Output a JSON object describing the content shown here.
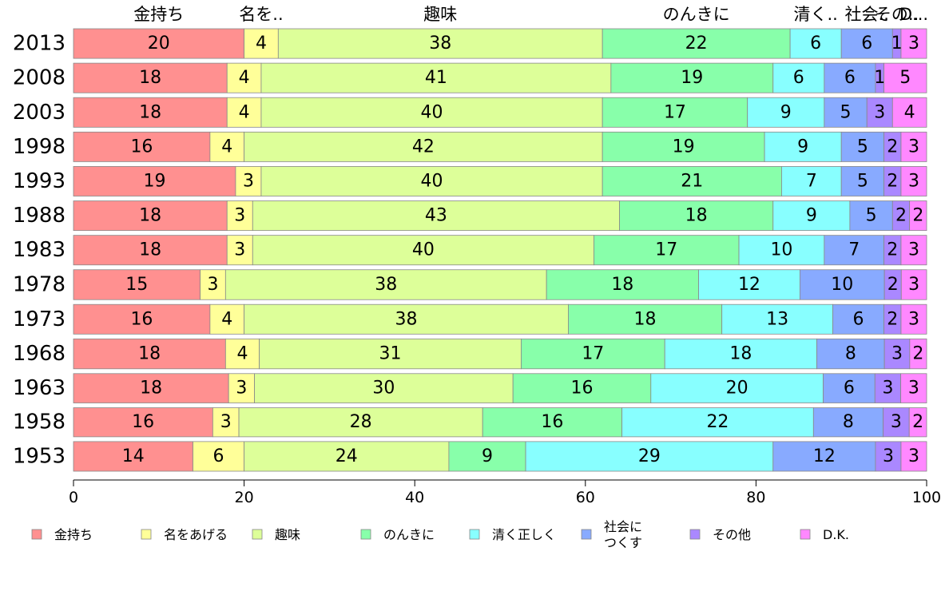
{
  "chart_data": {
    "type": "bar",
    "orientation": "horizontal",
    "stacked": true,
    "categories": [
      "2013",
      "2008",
      "2003",
      "1998",
      "1993",
      "1988",
      "1983",
      "1978",
      "1973",
      "1968",
      "1963",
      "1958",
      "1953"
    ],
    "series": [
      {
        "name": "金持ち",
        "color": "#ff9090",
        "values": [
          20,
          18,
          18,
          16,
          19,
          18,
          18,
          15,
          16,
          18,
          18,
          16,
          14
        ]
      },
      {
        "name": "名をあげる",
        "color": "#ffff99",
        "values": [
          4,
          4,
          4,
          4,
          3,
          3,
          3,
          3,
          4,
          4,
          3,
          3,
          6
        ]
      },
      {
        "name": "趣味",
        "color": "#ddff99",
        "values": [
          38,
          41,
          40,
          42,
          40,
          43,
          40,
          38,
          38,
          31,
          30,
          28,
          24
        ]
      },
      {
        "name": "のんきに",
        "color": "#88ffaa",
        "values": [
          22,
          19,
          17,
          19,
          21,
          18,
          17,
          18,
          18,
          17,
          16,
          16,
          9
        ]
      },
      {
        "name": "清く正しく",
        "color": "#88ffff",
        "values": [
          6,
          6,
          9,
          9,
          7,
          9,
          10,
          12,
          13,
          18,
          20,
          22,
          29
        ]
      },
      {
        "name": "社会に\nつくす",
        "color": "#88aaff",
        "values": [
          6,
          6,
          5,
          5,
          5,
          5,
          7,
          10,
          6,
          8,
          6,
          8,
          12
        ]
      },
      {
        "name": "その他",
        "color": "#aa88ff",
        "values": [
          1,
          1,
          3,
          2,
          2,
          2,
          2,
          2,
          2,
          3,
          3,
          3,
          3
        ]
      },
      {
        "name": "D.K.",
        "color": "#ff88ff",
        "values": [
          3,
          5,
          4,
          3,
          3,
          2,
          3,
          3,
          3,
          2,
          3,
          2,
          3
        ]
      }
    ],
    "top_labels": [
      "金持ち",
      "名を..",
      "趣味",
      "のんきに",
      "清く..",
      "社会..",
      "その..",
      "D..."
    ],
    "xlim": [
      0,
      100
    ],
    "xticks": [
      "0",
      "20",
      "40",
      "60",
      "80",
      "100"
    ],
    "title": "",
    "xlabel": "",
    "ylabel": "",
    "legend_position": "bottom",
    "grid": false
  }
}
